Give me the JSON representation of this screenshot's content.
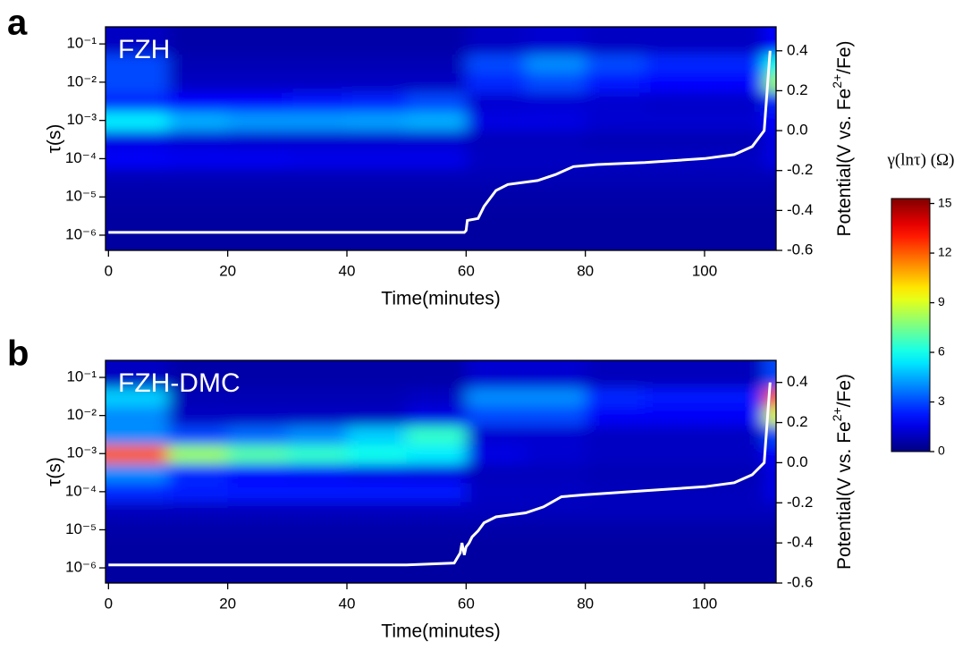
{
  "chart_data": [
    {
      "type": "heatmap",
      "panel": "a",
      "title": "FZH",
      "xlabel": "Time(minutes)",
      "ylabel": "τ(s)",
      "y2label": [
        "Potential(V vs. Fe",
        "2+",
        "/Fe)"
      ],
      "xlim": [
        -0.5,
        112
      ],
      "xticks": [
        0,
        20,
        40,
        60,
        80,
        100
      ],
      "ylim": [
        4e-07,
        0.28
      ],
      "log_y": true,
      "yticks": [
        {
          "value": 1e-06,
          "label": "10⁻⁶"
        },
        {
          "value": 1e-05,
          "label": "10⁻⁵"
        },
        {
          "value": 0.0001,
          "label": "10⁻⁴"
        },
        {
          "value": 0.001,
          "label": "10⁻³"
        },
        {
          "value": 0.01,
          "label": "10⁻²"
        },
        {
          "value": 0.1,
          "label": "10⁻¹"
        }
      ],
      "y2lim": [
        -0.6,
        0.52
      ],
      "y2ticks": [
        -0.6,
        -0.4,
        -0.2,
        {
          "value": 0,
          "label": "0.0"
        },
        0.2,
        0.4
      ],
      "xbins": [
        0,
        10,
        20,
        30,
        40,
        50,
        60,
        70,
        80,
        90,
        100,
        110,
        112
      ],
      "y": [
        1e-06,
        3e-06,
        1e-05,
        3e-05,
        0.0001,
        0.0003,
        0.001,
        0.003,
        0.01,
        0.03,
        0.1
      ],
      "z": [
        [
          0.5,
          0.5,
          0.5,
          0.5,
          0.5,
          0.5,
          0.5,
          0.5,
          0.5,
          0.5,
          0.5,
          0.5
        ],
        [
          0.5,
          0.5,
          0.5,
          0.5,
          0.5,
          0.5,
          0.5,
          0.5,
          0.5,
          0.5,
          0.5,
          0.5
        ],
        [
          0.6,
          0.6,
          0.6,
          0.6,
          0.6,
          0.6,
          0.6,
          0.6,
          0.6,
          0.6,
          0.6,
          0.6
        ],
        [
          0.8,
          0.8,
          0.8,
          0.8,
          0.8,
          0.8,
          0.8,
          0.8,
          0.8,
          0.8,
          0.8,
          0.8
        ],
        [
          1.8,
          1.7,
          1.7,
          1.6,
          1.6,
          1.6,
          1.0,
          1.0,
          1.0,
          1.0,
          1.0,
          1.5
        ],
        [
          1.5,
          1.3,
          1.2,
          1.2,
          1.2,
          1.2,
          0.9,
          0.9,
          0.8,
          0.8,
          0.8,
          1.5
        ],
        [
          5.5,
          4.5,
          4.2,
          4.2,
          4.3,
          4.5,
          1.5,
          1.5,
          1.2,
          1.2,
          1.2,
          2
        ],
        [
          2.5,
          2,
          2,
          2.2,
          2.4,
          3,
          1.2,
          1.3,
          1.2,
          1.1,
          1.1,
          2.5
        ],
        [
          3,
          1,
          1,
          1,
          1,
          1,
          2.5,
          3,
          2.2,
          2,
          2,
          8
        ],
        [
          3,
          0.8,
          0.8,
          0.8,
          0.8,
          0.8,
          3,
          4,
          3,
          2.5,
          2.5,
          6
        ],
        [
          1,
          0.6,
          0.6,
          0.6,
          0.6,
          0.6,
          1,
          1.2,
          1,
          1,
          1,
          2
        ]
      ],
      "series": [
        {
          "axis": "y2",
          "color": "#ffffff",
          "x": [
            0,
            10,
            20,
            30,
            40,
            50,
            59.7,
            60,
            60.2,
            62,
            63,
            65,
            67,
            72,
            75,
            78,
            82,
            90,
            100,
            105,
            108,
            110,
            110.5,
            111
          ],
          "values": [
            -0.51,
            -0.51,
            -0.51,
            -0.51,
            -0.51,
            -0.51,
            -0.51,
            -0.5,
            -0.45,
            -0.44,
            -0.38,
            -0.3,
            -0.27,
            -0.25,
            -0.22,
            -0.18,
            -0.17,
            -0.16,
            -0.14,
            -0.12,
            -0.08,
            0.0,
            0.2,
            0.4
          ]
        }
      ]
    },
    {
      "type": "heatmap",
      "panel": "b",
      "title": "FZH-DMC",
      "xlabel": "Time(minutes)",
      "ylabel": "τ(s)",
      "y2label": [
        "Potential(V vs. Fe",
        "2+",
        "/Fe)"
      ],
      "xlim": [
        -0.5,
        112
      ],
      "xticks": [
        0,
        20,
        40,
        60,
        80,
        100
      ],
      "ylim": [
        4e-07,
        0.28
      ],
      "log_y": true,
      "yticks": [
        {
          "value": 1e-06,
          "label": "10⁻⁶"
        },
        {
          "value": 1e-05,
          "label": "10⁻⁵"
        },
        {
          "value": 0.0001,
          "label": "10⁻⁴"
        },
        {
          "value": 0.001,
          "label": "10⁻³"
        },
        {
          "value": 0.01,
          "label": "10⁻²"
        },
        {
          "value": 0.1,
          "label": "10⁻¹"
        }
      ],
      "y2lim": [
        -0.6,
        0.51
      ],
      "y2ticks": [
        -0.6,
        -0.4,
        -0.2,
        {
          "value": 0,
          "label": "0.0"
        },
        0.2,
        0.4
      ],
      "xbins": [
        0,
        10,
        20,
        30,
        40,
        50,
        60,
        70,
        80,
        90,
        100,
        110,
        112
      ],
      "y": [
        1e-06,
        3e-06,
        1e-05,
        3e-05,
        0.0001,
        0.0003,
        0.001,
        0.003,
        0.01,
        0.03,
        0.1
      ],
      "z": [
        [
          0.5,
          0.5,
          0.5,
          0.5,
          0.5,
          0.5,
          0.5,
          0.5,
          0.5,
          0.5,
          0.5,
          0.5
        ],
        [
          0.5,
          0.5,
          0.5,
          0.5,
          0.5,
          0.5,
          0.5,
          0.5,
          0.5,
          0.5,
          0.5,
          0.5
        ],
        [
          0.6,
          0.6,
          0.6,
          0.6,
          0.6,
          0.6,
          0.6,
          0.6,
          0.6,
          0.6,
          0.6,
          0.6
        ],
        [
          0.9,
          0.9,
          0.9,
          0.9,
          0.9,
          0.9,
          0.9,
          0.9,
          0.9,
          0.9,
          0.9,
          0.9
        ],
        [
          2.5,
          2.3,
          2.2,
          2.2,
          2.2,
          2.2,
          1,
          1,
          0.9,
          0.9,
          0.9,
          1.5
        ],
        [
          4,
          2.5,
          2,
          1.8,
          1.6,
          1.5,
          0.9,
          0.9,
          0.8,
          0.8,
          0.8,
          1.5
        ],
        [
          12,
          8,
          7,
          6.5,
          6,
          5.5,
          1.5,
          1.2,
          1,
          1,
          1,
          2
        ],
        [
          4,
          3,
          3.5,
          4,
          5,
          6.5,
          1.2,
          1.2,
          1,
          1,
          1,
          3
        ],
        [
          4,
          1,
          1,
          1,
          1,
          1.5,
          3,
          3,
          1.8,
          1.8,
          1.8,
          9
        ],
        [
          5,
          0.8,
          0.8,
          0.8,
          0.8,
          1,
          4,
          4,
          2.5,
          2.2,
          2.2,
          12
        ],
        [
          1,
          0.6,
          0.6,
          0.6,
          0.6,
          0.6,
          1.2,
          1.2,
          0.9,
          0.9,
          0.9,
          3
        ]
      ],
      "series": [
        {
          "axis": "y2",
          "color": "#ffffff",
          "x": [
            0,
            10,
            20,
            30,
            40,
            50,
            58,
            59,
            59.3,
            59.7,
            60,
            60.5,
            61,
            62,
            63,
            65,
            70,
            73,
            76,
            80,
            90,
            100,
            105,
            108,
            110,
            110.5,
            111
          ],
          "values": [
            -0.51,
            -0.51,
            -0.51,
            -0.51,
            -0.51,
            -0.51,
            -0.5,
            -0.45,
            -0.4,
            -0.46,
            -0.42,
            -0.4,
            -0.37,
            -0.34,
            -0.3,
            -0.27,
            -0.25,
            -0.22,
            -0.17,
            -0.16,
            -0.14,
            -0.12,
            -0.1,
            -0.06,
            0.0,
            0.2,
            0.4
          ]
        }
      ]
    }
  ],
  "colorbar": {
    "title": "γ(lnτ) (Ω)",
    "lim": [
      0,
      15.3
    ],
    "ticks": [
      0,
      3,
      6,
      9,
      12,
      15
    ]
  }
}
